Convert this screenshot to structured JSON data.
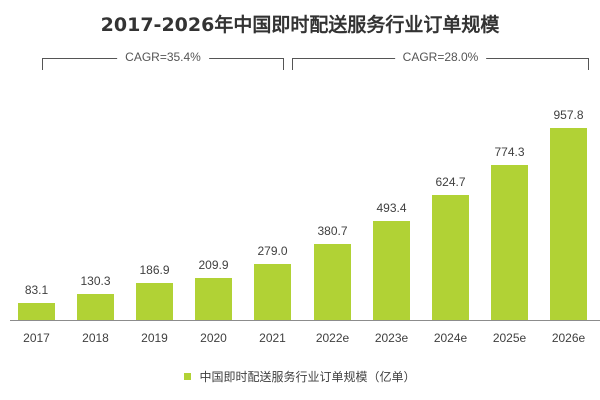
{
  "header": {
    "title": "2017-2026年中国即时配送服务行业订单规模"
  },
  "annotations": [
    {
      "label": "CAGR=35.4%",
      "from": "2017",
      "to": "2021"
    },
    {
      "label": "CAGR=28.0%",
      "from": "2022e",
      "to": "2026e"
    }
  ],
  "legend": {
    "label": "中国即时配送服务行业订单规模（亿单）",
    "color": "#b1d235"
  },
  "chart_data": {
    "type": "bar",
    "title": "2017-2026年中国即时配送服务行业订单规模",
    "xlabel": "",
    "ylabel": "",
    "categories": [
      "2017",
      "2018",
      "2019",
      "2020",
      "2021",
      "2022e",
      "2023e",
      "2024e",
      "2025e",
      "2026e"
    ],
    "series": [
      {
        "name": "中国即时配送服务行业订单规模（亿单）",
        "color": "#b1d235",
        "values": [
          83.1,
          130.3,
          186.9,
          209.9,
          279.0,
          380.7,
          493.4,
          624.7,
          774.3,
          957.8
        ]
      }
    ],
    "value_labels": [
      "83.1",
      "130.3",
      "186.9",
      "209.9",
      "279.0",
      "380.7",
      "493.4",
      "624.7",
      "774.3",
      "957.8"
    ],
    "annotations": [
      "CAGR=35.4%",
      "CAGR=28.0%"
    ],
    "grid": false,
    "legend_position": "bottom",
    "ylim": [
      0,
      1000
    ]
  }
}
